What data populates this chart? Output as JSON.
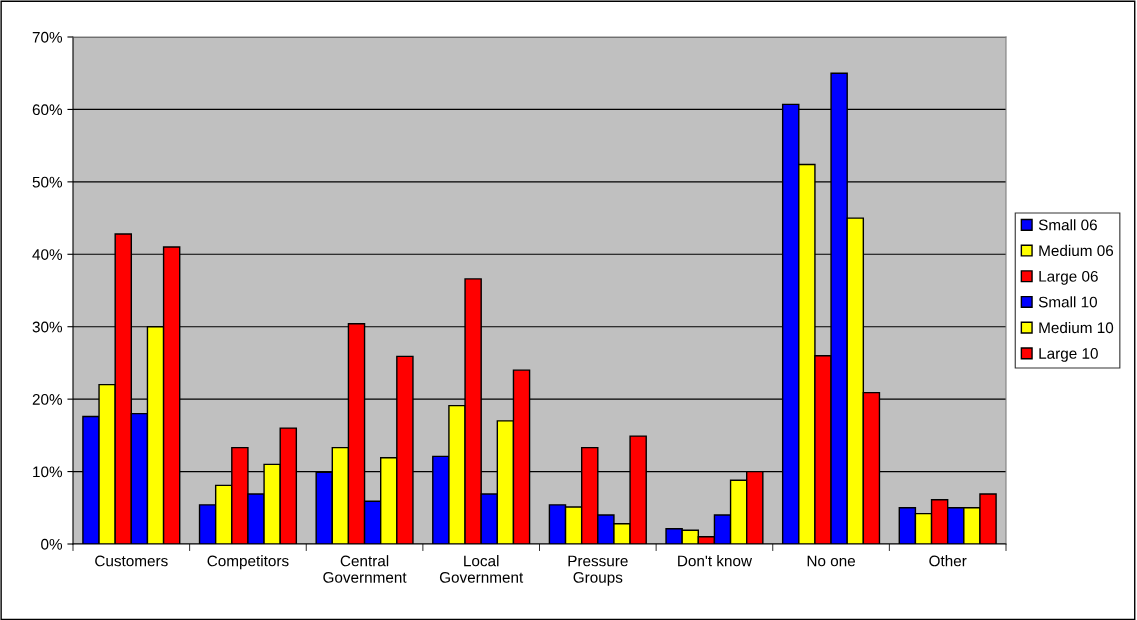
{
  "chart_data": {
    "type": "bar",
    "categories": [
      "Customers",
      "Competitors",
      "Central Government",
      "Local Government",
      "Pressure Groups",
      "Don't know",
      "No one",
      "Other"
    ],
    "series": [
      {
        "name": "Small 06",
        "color": "#0000ff",
        "values": [
          17.6,
          5.4,
          9.9,
          12.1,
          5.4,
          2.1,
          60.7,
          5.0
        ]
      },
      {
        "name": "Medium 06",
        "color": "#ffff00",
        "values": [
          22.0,
          8.1,
          13.3,
          19.1,
          5.1,
          1.9,
          52.4,
          4.2
        ]
      },
      {
        "name": "Large 06",
        "color": "#ff0000",
        "values": [
          42.8,
          13.3,
          30.4,
          36.6,
          13.3,
          1.0,
          26.0,
          6.1
        ]
      },
      {
        "name": "Small 10",
        "color": "#0000ff",
        "values": [
          18.0,
          6.9,
          5.9,
          6.9,
          4.0,
          4.0,
          65.0,
          5.0
        ]
      },
      {
        "name": "Medium 10",
        "color": "#ffff00",
        "values": [
          30.0,
          11.0,
          11.9,
          17.0,
          2.8,
          8.8,
          45.0,
          5.0
        ]
      },
      {
        "name": "Large 10",
        "color": "#ff0000",
        "values": [
          41.0,
          16.0,
          25.9,
          24.0,
          14.9,
          10.0,
          20.9,
          6.9
        ]
      }
    ],
    "ylim": [
      0,
      70
    ],
    "yticks": [
      {
        "value": 0,
        "label": "0%"
      },
      {
        "value": 10,
        "label": "10%"
      },
      {
        "value": 20,
        "label": "20%"
      },
      {
        "value": 30,
        "label": "30%"
      },
      {
        "value": 40,
        "label": "40%"
      },
      {
        "value": 50,
        "label": "50%"
      },
      {
        "value": 60,
        "label": "60%"
      },
      {
        "value": 70,
        "label": "70%"
      }
    ],
    "grid": "y",
    "legend": "right"
  }
}
